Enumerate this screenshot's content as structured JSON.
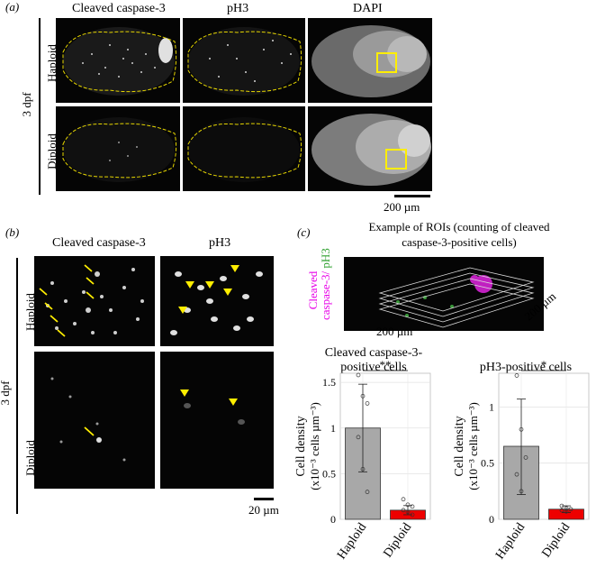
{
  "panel_a": {
    "label": "(a)",
    "col_headers": [
      "Cleaved caspase-3",
      "pH3",
      "DAPI"
    ],
    "row_labels": [
      "Haploid",
      "Diploid"
    ],
    "group_label": "3 dpf",
    "scalebar": "200 µm"
  },
  "panel_b": {
    "label": "(b)",
    "col_headers": [
      "Cleaved caspase-3",
      "pH3"
    ],
    "row_labels": [
      "Haploid",
      "Diploid"
    ],
    "group_label": "3 dpf",
    "scalebar": "20 µm"
  },
  "panel_c": {
    "label": "(c)",
    "title_line1": "Example of ROIs (counting of cleaved",
    "title_line2": "caspase-3-positive cells)",
    "stack_label_1": "Cleaved",
    "stack_label_2": "caspase-3/",
    "stack_label_3": "pH3",
    "dim_label_1": "200 µm",
    "dim_label_2": "200 µm",
    "colors": {
      "magenta": "#e800e8",
      "green": "#2ea02e",
      "bar_haploid": "#a8a8a8",
      "bar_diploid": "#ee0000",
      "annot": "#ffee00"
    }
  },
  "chart_data": [
    {
      "type": "bar",
      "title": "Cleaved caspase-3-positive cells",
      "title_line1": "Cleaved caspase-3-",
      "title_line2": "positive cells",
      "categories": [
        "Haploid",
        "Diploid"
      ],
      "values": [
        1.0,
        0.1
      ],
      "error": [
        [
          0.52,
          1.48
        ],
        [
          0.05,
          0.15
        ]
      ],
      "points": [
        [
          1.58,
          1.35,
          1.27,
          0.9,
          0.55,
          0.3
        ],
        [
          0.22,
          0.16,
          0.14,
          0.1,
          0.08,
          0.05
        ]
      ],
      "ylabel_line1": "Cell density",
      "ylabel_line2": "(x10⁻³ cells µm⁻³)",
      "ylim": [
        0,
        1.6
      ],
      "yticks": [
        "0",
        "0.5",
        "1",
        "1.5"
      ],
      "significance": "**",
      "grid": true
    },
    {
      "type": "bar",
      "title": "pH3-positive cells",
      "categories": [
        "Haploid",
        "Diploid"
      ],
      "values": [
        0.65,
        0.09
      ],
      "error": [
        [
          0.22,
          1.07
        ],
        [
          0.06,
          0.12
        ]
      ],
      "points": [
        [
          1.28,
          0.8,
          0.55,
          0.4,
          0.25
        ],
        [
          0.12,
          0.1,
          0.09,
          0.08,
          0.07
        ]
      ],
      "ylabel_line1": "Cell density",
      "ylabel_line2": "(x10⁻³ cells µm⁻³)",
      "ylim": [
        0,
        1.3
      ],
      "yticks": [
        "0",
        "0.5",
        "1"
      ],
      "significance": "*",
      "grid": true
    }
  ]
}
